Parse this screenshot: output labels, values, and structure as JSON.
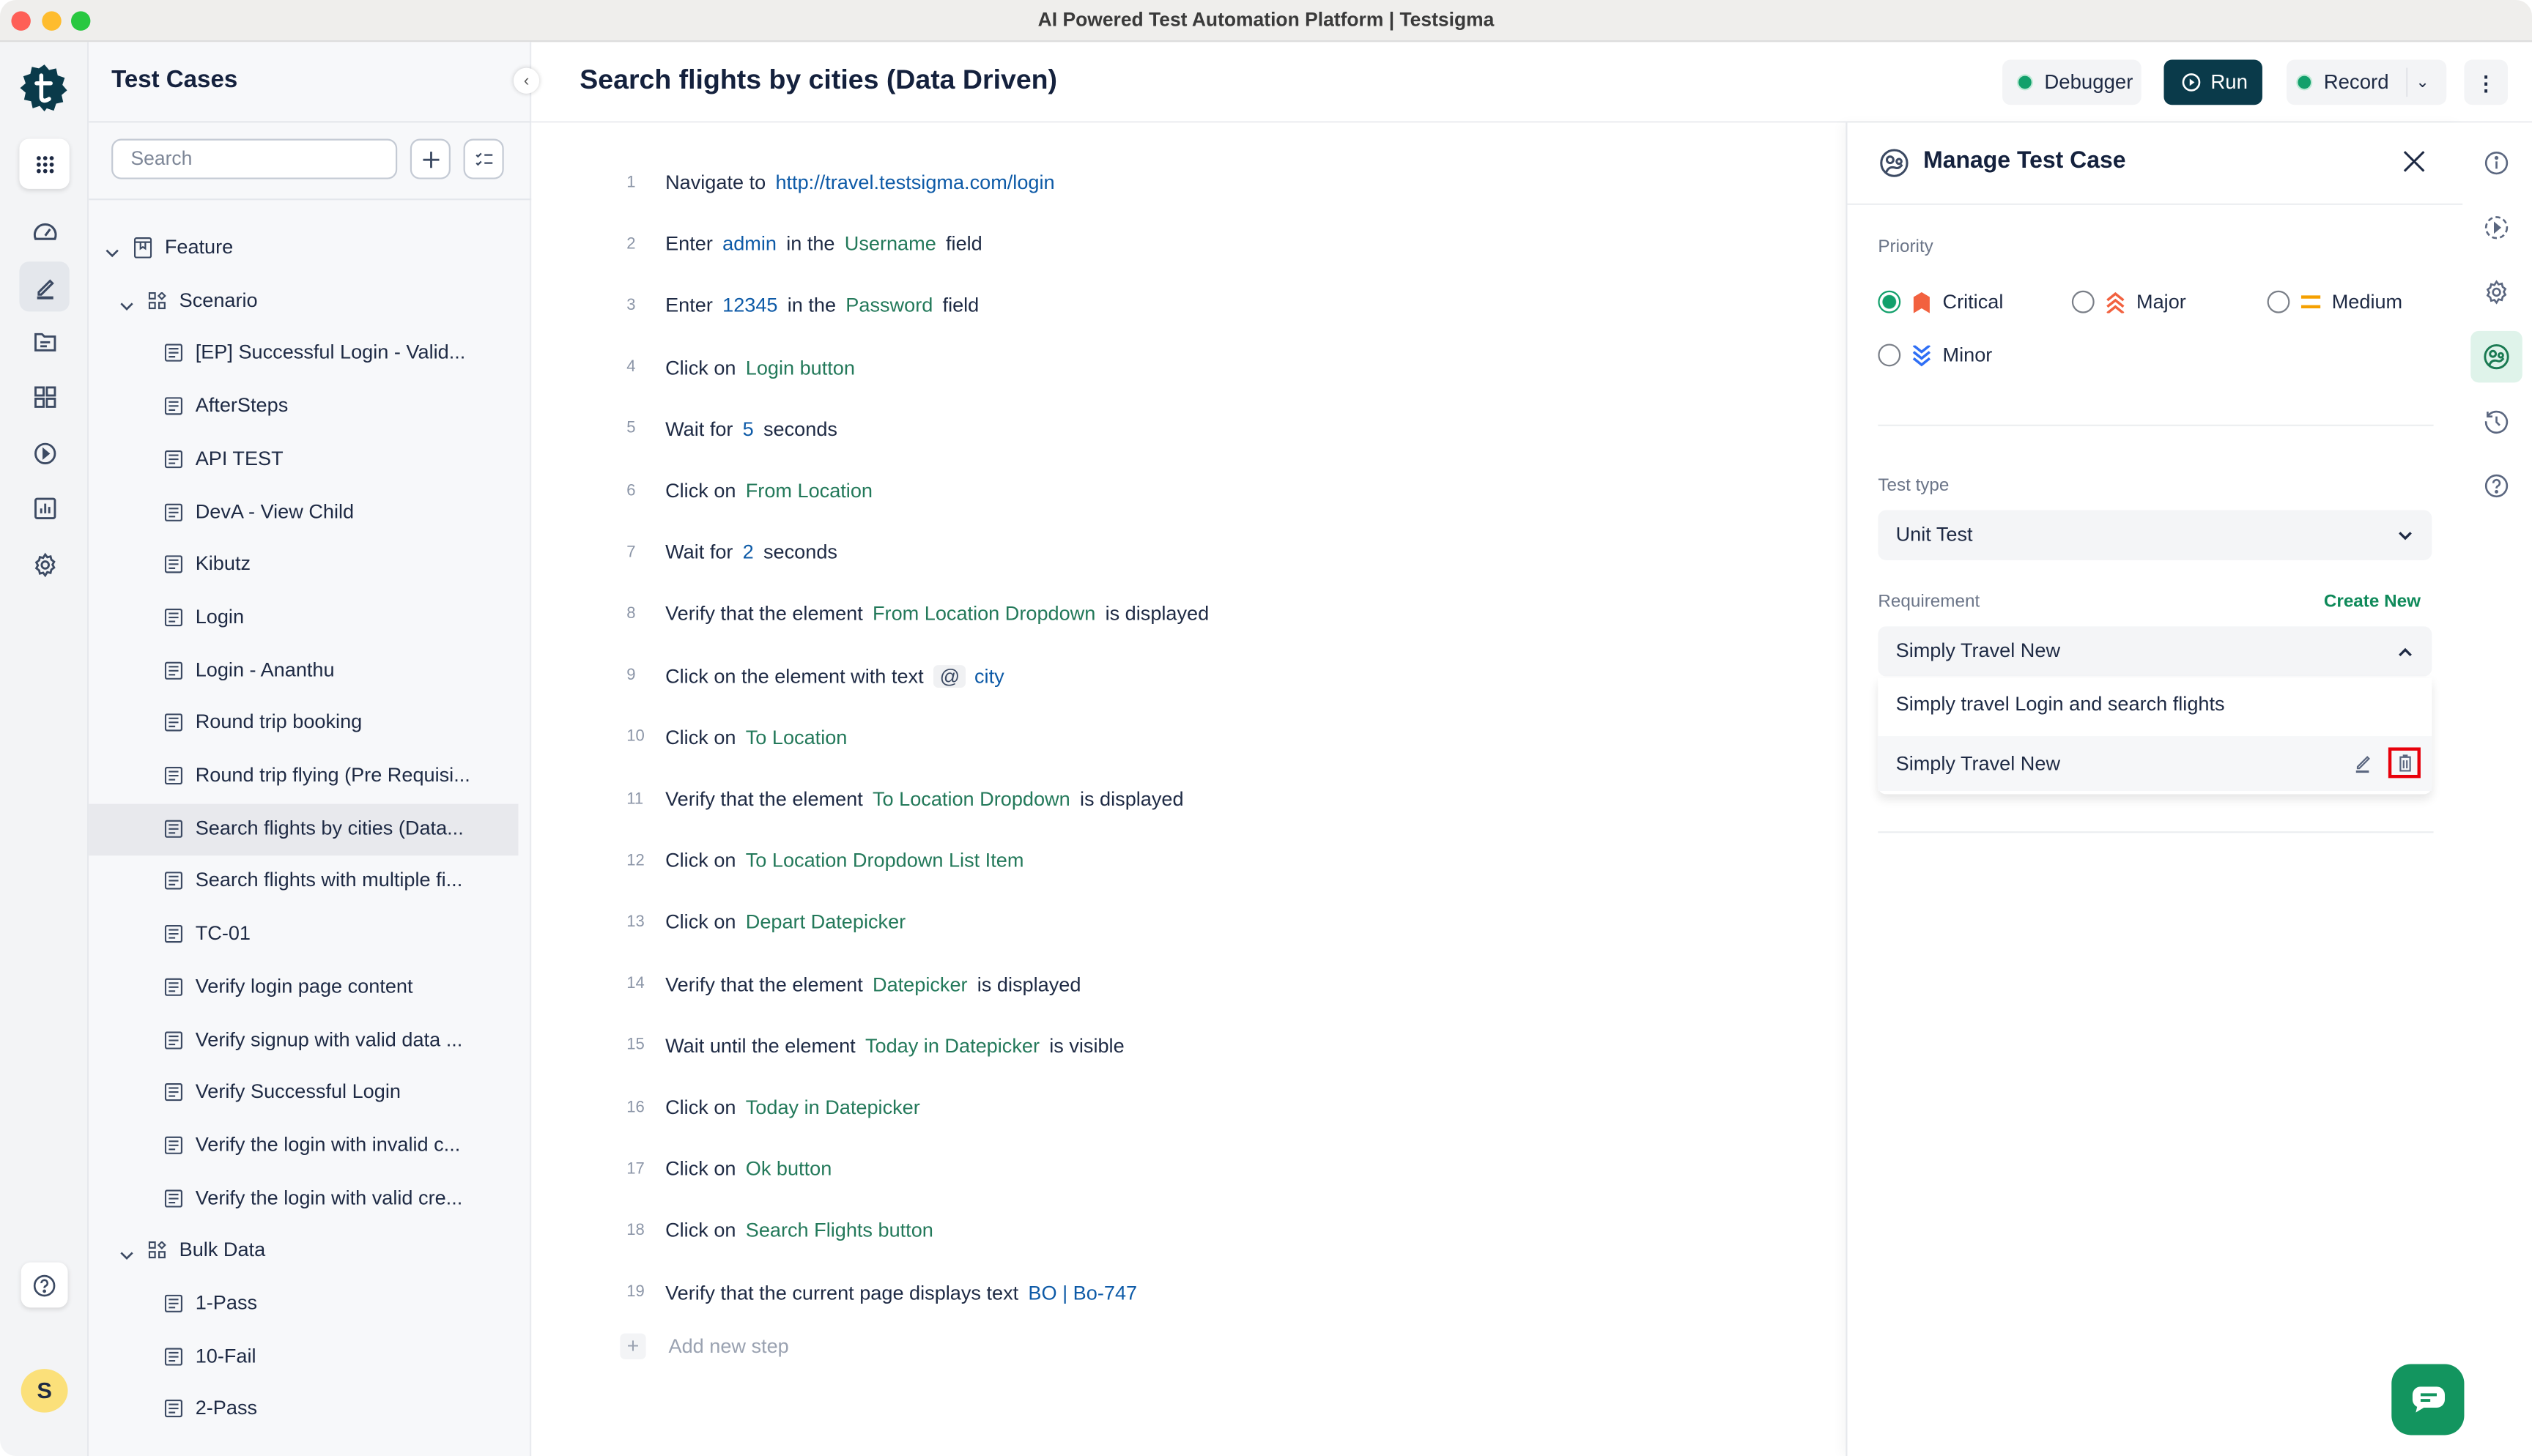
{
  "window": {
    "title": "AI Powered Test Automation Platform | Testsigma"
  },
  "sidebar": {
    "title": "Test Cases",
    "search_placeholder": "Search",
    "tree": [
      {
        "label": "Feature",
        "level": 0,
        "kind": "feature",
        "expanded": true
      },
      {
        "label": "Scenario",
        "level": 1,
        "kind": "group",
        "expanded": true
      },
      {
        "label": "[EP] Successful Login - Valid...",
        "level": 2,
        "kind": "case"
      },
      {
        "label": "AfterSteps",
        "level": 2,
        "kind": "case"
      },
      {
        "label": "API TEST",
        "level": 2,
        "kind": "case"
      },
      {
        "label": "DevA - View Child",
        "level": 2,
        "kind": "case"
      },
      {
        "label": "Kibutz",
        "level": 2,
        "kind": "case"
      },
      {
        "label": "Login",
        "level": 2,
        "kind": "case"
      },
      {
        "label": "Login - Ananthu",
        "level": 2,
        "kind": "case"
      },
      {
        "label": "Round trip booking",
        "level": 2,
        "kind": "case"
      },
      {
        "label": "Round trip flying (Pre Requisi...",
        "level": 2,
        "kind": "case"
      },
      {
        "label": "Search flights by cities (Data...",
        "level": 2,
        "kind": "case",
        "selected": true
      },
      {
        "label": "Search flights with multiple fi...",
        "level": 2,
        "kind": "case"
      },
      {
        "label": "TC-01",
        "level": 2,
        "kind": "case"
      },
      {
        "label": "Verify login page content",
        "level": 2,
        "kind": "case"
      },
      {
        "label": "Verify signup with valid data ...",
        "level": 2,
        "kind": "case"
      },
      {
        "label": "Verify Successful Login",
        "level": 2,
        "kind": "case"
      },
      {
        "label": "Verify the login with invalid c...",
        "level": 2,
        "kind": "case"
      },
      {
        "label": "Verify the login with valid cre...",
        "level": 2,
        "kind": "case"
      },
      {
        "label": "Bulk Data",
        "level": 1,
        "kind": "group",
        "expanded": true
      },
      {
        "label": "1-Pass",
        "level": 2,
        "kind": "case"
      },
      {
        "label": "10-Fail",
        "level": 2,
        "kind": "case"
      },
      {
        "label": "2-Pass",
        "level": 2,
        "kind": "case"
      }
    ]
  },
  "rail": {
    "avatar_initial": "S",
    "active": "test-development"
  },
  "header": {
    "title": "Search flights by cities (Data Driven)",
    "debugger_label": "Debugger",
    "run_label": "Run",
    "record_label": "Record"
  },
  "steps": [
    [
      {
        "t": "Navigate to"
      },
      {
        "v": "http://travel.testsigma.com/login"
      }
    ],
    [
      {
        "t": "Enter"
      },
      {
        "v": "admin"
      },
      {
        "t": "in the"
      },
      {
        "e": "Username"
      },
      {
        "t": "field"
      }
    ],
    [
      {
        "t": "Enter"
      },
      {
        "v": "12345"
      },
      {
        "t": "in the"
      },
      {
        "e": "Password"
      },
      {
        "t": "field"
      }
    ],
    [
      {
        "t": "Click on"
      },
      {
        "e": "Login button"
      }
    ],
    [
      {
        "t": "Wait for"
      },
      {
        "v": "5"
      },
      {
        "t": "seconds"
      }
    ],
    [
      {
        "t": "Click on"
      },
      {
        "e": "From Location"
      }
    ],
    [
      {
        "t": "Wait for"
      },
      {
        "v": "2"
      },
      {
        "t": "seconds"
      }
    ],
    [
      {
        "t": "Verify that the element"
      },
      {
        "e": "From Location Dropdown"
      },
      {
        "t": "is displayed"
      }
    ],
    [
      {
        "t": "Click on the element with text"
      },
      {
        "at": "@"
      },
      {
        "v": "city"
      }
    ],
    [
      {
        "t": "Click on"
      },
      {
        "e": "To Location"
      }
    ],
    [
      {
        "t": "Verify that the element"
      },
      {
        "e": "To Location Dropdown"
      },
      {
        "t": "is displayed"
      }
    ],
    [
      {
        "t": "Click on"
      },
      {
        "e": "To Location Dropdown List Item"
      }
    ],
    [
      {
        "t": "Click on"
      },
      {
        "e": "Depart Datepicker"
      }
    ],
    [
      {
        "t": "Verify that the element"
      },
      {
        "e": "Datepicker"
      },
      {
        "t": "is displayed"
      }
    ],
    [
      {
        "t": "Wait until the element"
      },
      {
        "e": "Today in Datepicker"
      },
      {
        "t": "is visible"
      }
    ],
    [
      {
        "t": "Click on"
      },
      {
        "e": "Today in Datepicker"
      }
    ],
    [
      {
        "t": "Click on"
      },
      {
        "e": "Ok button"
      }
    ],
    [
      {
        "t": "Click on"
      },
      {
        "e": "Search Flights button"
      }
    ],
    [
      {
        "t": "Verify that the current page displays text"
      },
      {
        "v": "BO | Bo-747"
      }
    ]
  ],
  "add_step_label": "Add new step",
  "panel": {
    "title": "Manage Test Case",
    "priority_label": "Priority",
    "priorities": [
      {
        "label": "Critical",
        "checked": true,
        "color": "#f2613f"
      },
      {
        "label": "Major",
        "checked": false,
        "color": "#f2613f"
      },
      {
        "label": "Medium",
        "checked": false,
        "color": "#f5a000"
      },
      {
        "label": "Minor",
        "checked": false,
        "color": "#2f6ff5"
      }
    ],
    "test_type_label": "Test type",
    "test_type_value": "Unit Test",
    "requirement_label": "Requirement",
    "create_new_label": "Create New",
    "requirement_value": "Simply Travel New",
    "requirement_options": [
      "Simply travel Login and search flights",
      "Simply Travel New"
    ]
  },
  "colors": {
    "brand": "#0a3a4a",
    "accent_green": "#12a06b",
    "value_blue": "#0d5aa7",
    "element_green": "#23795a",
    "highlight_red": "#e8000b"
  }
}
